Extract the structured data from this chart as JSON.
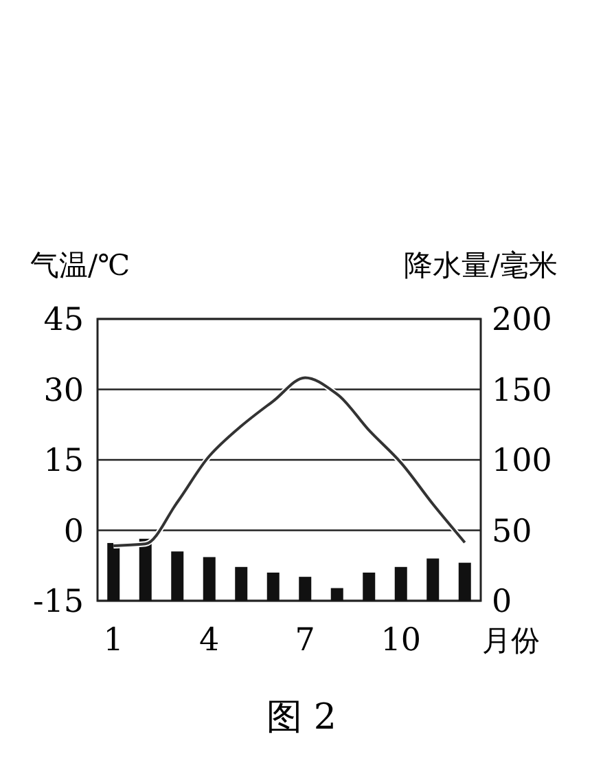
{
  "chart_data": {
    "type": "bar",
    "categories": [
      "1",
      null,
      null,
      "4",
      null,
      null,
      "7",
      null,
      null,
      "10",
      null,
      null
    ],
    "series": [
      {
        "axis": "y2",
        "color": "#111111",
        "values": [
          41,
          44,
          35,
          31,
          24,
          20,
          17,
          9,
          20,
          24,
          30,
          27
        ]
      },
      {
        "type": "line",
        "axis": "y",
        "color": "#333333",
        "values": [
          -3.3,
          -2.9,
          6,
          15.8,
          22.2,
          27.5,
          32.5,
          29,
          21.3,
          14.4,
          5.6,
          -2.6
        ]
      }
    ],
    "ylabel": "气温/℃",
    "y2label": "降水量/毫米",
    "xlabel": "月份",
    "ylim": [
      -15,
      45
    ],
    "yticks": [
      -15,
      0,
      15,
      30,
      45
    ],
    "y2lim": [
      0,
      200
    ],
    "y2ticks": [
      0,
      50,
      100,
      150,
      200
    ],
    "grid": "y",
    "annotations": [
      "图 2"
    ]
  }
}
